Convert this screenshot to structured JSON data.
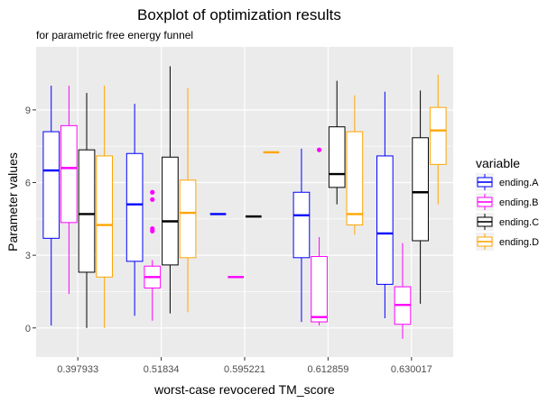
{
  "chart_data": {
    "type": "boxplot",
    "title": "Boxplot of optimization results",
    "subtitle": "for parametric free energy funnel",
    "xlabel": "worst-case revocered TM_score",
    "ylabel": "Parameter values",
    "categories": [
      "0.397933",
      "0.51834",
      "0.595221",
      "0.612859",
      "0.630017"
    ],
    "ylim": [
      -1.2,
      11.6
    ],
    "yticks": [
      0,
      3,
      6,
      9
    ],
    "grid": true,
    "legend": {
      "title": "variable",
      "position": "right"
    },
    "series": [
      {
        "name": "ending.A",
        "color": "#0000ff",
        "boxes": [
          {
            "min": 0.1,
            "q1": 3.7,
            "median": 6.5,
            "q3": 8.1,
            "max": 10.0,
            "outliers": []
          },
          {
            "min": 0.5,
            "q1": 2.75,
            "median": 5.1,
            "q3": 7.2,
            "max": 9.25,
            "outliers": []
          },
          {
            "min": 4.7,
            "q1": 4.7,
            "median": 4.7,
            "q3": 4.7,
            "max": 4.7,
            "outliers": []
          },
          {
            "min": 0.25,
            "q1": 2.9,
            "median": 4.65,
            "q3": 5.6,
            "max": 7.4,
            "outliers": []
          },
          {
            "min": 0.4,
            "q1": 1.8,
            "median": 3.9,
            "q3": 7.1,
            "max": 9.75,
            "outliers": []
          }
        ]
      },
      {
        "name": "ending.B",
        "color": "#ff00ff",
        "boxes": [
          {
            "min": 1.4,
            "q1": 4.35,
            "median": 6.6,
            "q3": 8.35,
            "max": 10.0,
            "outliers": []
          },
          {
            "min": 0.3,
            "q1": 1.65,
            "median": 2.1,
            "q3": 2.55,
            "max": 2.8,
            "outliers": [
              5.6,
              5.3,
              4.1,
              4.0
            ]
          },
          {
            "min": 2.1,
            "q1": 2.1,
            "median": 2.1,
            "q3": 2.1,
            "max": 2.1,
            "outliers": []
          },
          {
            "min": 0.1,
            "q1": 0.25,
            "median": 0.45,
            "q3": 2.95,
            "max": 3.75,
            "outliers": [
              7.35
            ]
          },
          {
            "min": -0.45,
            "q1": 0.15,
            "median": 0.95,
            "q3": 1.7,
            "max": 3.5,
            "outliers": []
          }
        ]
      },
      {
        "name": "ending.C",
        "color": "#000000",
        "boxes": [
          {
            "min": 0.0,
            "q1": 2.3,
            "median": 4.7,
            "q3": 7.35,
            "max": 9.7,
            "outliers": []
          },
          {
            "min": 0.6,
            "q1": 2.6,
            "median": 4.4,
            "q3": 7.05,
            "max": 10.8,
            "outliers": []
          },
          {
            "min": 4.6,
            "q1": 4.6,
            "median": 4.6,
            "q3": 4.6,
            "max": 4.6,
            "outliers": []
          },
          {
            "min": 5.1,
            "q1": 5.8,
            "median": 6.35,
            "q3": 8.3,
            "max": 10.2,
            "outliers": []
          },
          {
            "min": 1.0,
            "q1": 3.6,
            "median": 5.6,
            "q3": 7.85,
            "max": 9.8,
            "outliers": []
          }
        ]
      },
      {
        "name": "ending.D",
        "color": "#ffa500",
        "boxes": [
          {
            "min": 0.0,
            "q1": 2.1,
            "median": 4.25,
            "q3": 7.1,
            "max": 10.0,
            "outliers": []
          },
          {
            "min": 0.65,
            "q1": 2.9,
            "median": 4.75,
            "q3": 6.1,
            "max": 9.9,
            "outliers": []
          },
          {
            "min": 7.25,
            "q1": 7.25,
            "median": 7.25,
            "q3": 7.25,
            "max": 7.25,
            "outliers": []
          },
          {
            "min": 3.85,
            "q1": 4.25,
            "median": 4.7,
            "q3": 8.1,
            "max": 9.6,
            "outliers": []
          },
          {
            "min": 5.1,
            "q1": 6.75,
            "median": 8.15,
            "q3": 9.1,
            "max": 10.45,
            "outliers": []
          }
        ]
      }
    ]
  }
}
